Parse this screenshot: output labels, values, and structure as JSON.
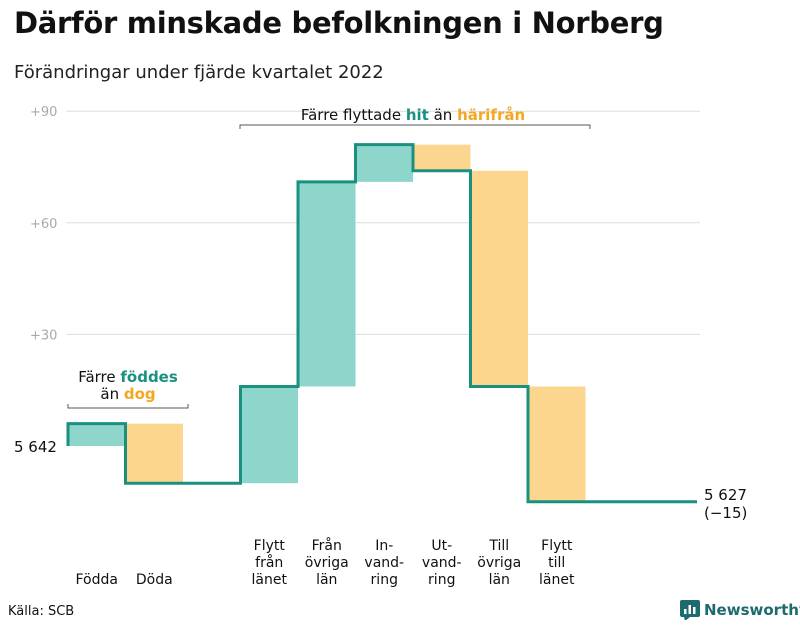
{
  "title": "Därför minskade befolkningen i Norberg",
  "subtitle": "Förändringar under fjärde kvartalet 2022",
  "source": "Källa: SCB",
  "brand": "Newsworthy",
  "colors": {
    "line": "#1a9180",
    "increase": "#8ed6cb",
    "decrease": "#fcd68e",
    "grid": "#dddddd",
    "tick": "#aaaaaa",
    "teal_text": "#1a9180",
    "orange_text": "#f5a623"
  },
  "annotations": {
    "birth_death": {
      "line1_pre": "Färre ",
      "line1_hl": "föddes",
      "line2_pre": "än ",
      "line2_hl": "dog"
    },
    "migration": {
      "pre": "Färre flyttade ",
      "hl1": "hit",
      "mid": " än ",
      "hl2": "härifrån"
    }
  },
  "start_label": "5 642",
  "end_label_line1": "5 627",
  "end_label_line2": "(−15)",
  "chart_data": {
    "type": "waterfall",
    "title": "Därför minskade befolkningen i Norberg",
    "subtitle": "Förändringar under fjärde kvartalet 2022",
    "start_value": 5642,
    "end_value": 5627,
    "net_change": -15,
    "y_ticks": [
      "+30",
      "+60",
      "+90"
    ],
    "y_tick_values": [
      30,
      60,
      90
    ],
    "grid": true,
    "steps": [
      {
        "label": [
          "Födda"
        ],
        "value": 6,
        "kind": "increase"
      },
      {
        "label": [
          "Döda"
        ],
        "value": -16,
        "kind": "decrease"
      },
      {
        "label": [],
        "value": 0,
        "kind": "gap"
      },
      {
        "label": [
          "Flytt",
          "från",
          "länet"
        ],
        "value": 26,
        "kind": "increase"
      },
      {
        "label": [
          "Från",
          "övriga",
          "län"
        ],
        "value": 55,
        "kind": "increase"
      },
      {
        "label": [
          "In-",
          "vand-",
          "ring"
        ],
        "value": 10,
        "kind": "increase"
      },
      {
        "label": [
          "Ut-",
          "vand-",
          "ring"
        ],
        "value": -7,
        "kind": "decrease"
      },
      {
        "label": [
          "Till",
          "övriga",
          "län"
        ],
        "value": -58,
        "kind": "decrease"
      },
      {
        "label": [
          "Flytt",
          "till",
          "länet"
        ],
        "value": -31,
        "kind": "decrease"
      }
    ]
  }
}
